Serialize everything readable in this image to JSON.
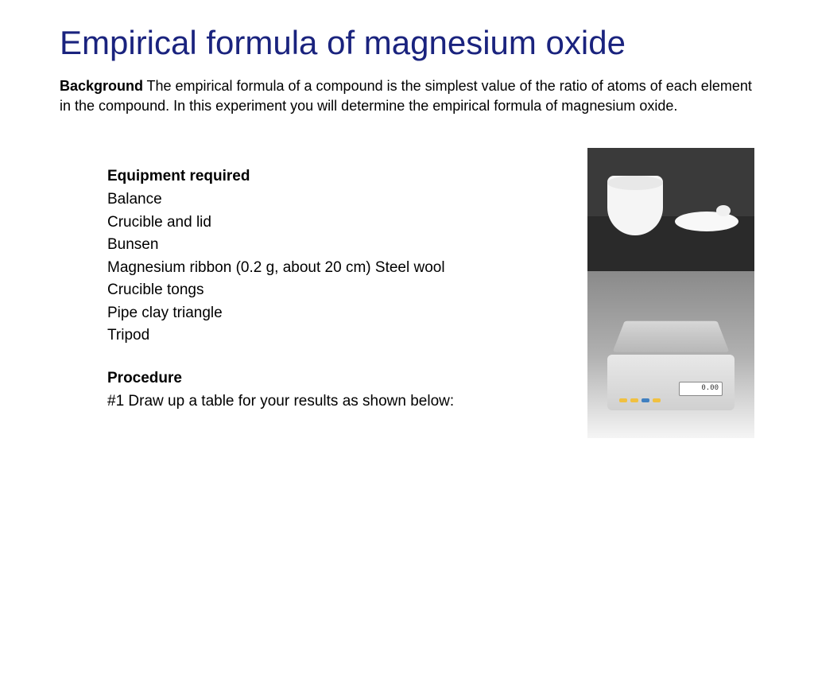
{
  "title": "Empirical formula of magnesium oxide",
  "background": {
    "heading": "Background",
    "text": "The empirical formula of a compound is the simplest value of the ratio of atoms of each element in the compound. In this experiment you will determine the empirical formula of magnesium oxide."
  },
  "equipment": {
    "heading": "Equipment required",
    "items": [
      "Balance",
      "Crucible and lid",
      "Bunsen",
      "Magnesium ribbon (0.2 g, about 20 cm) Steel wool",
      "Crucible tongs",
      "Pipe clay triangle",
      "Tripod"
    ]
  },
  "procedure": {
    "heading": "Procedure",
    "text": "#1 Draw up a table for your results as shown below:"
  },
  "images": {
    "crucible": {
      "description": "crucible-and-lid",
      "bg_color": "#3a3a3a",
      "item_color": "#f5f5f5"
    },
    "balance": {
      "description": "electronic-balance",
      "body_color": "#e0e0e0",
      "display_value": "0.00"
    }
  },
  "colors": {
    "title": "#1a237e",
    "text": "#000000",
    "background": "#ffffff"
  },
  "typography": {
    "title_fontsize": 42,
    "body_fontsize": 18,
    "equipment_fontsize": 19
  }
}
